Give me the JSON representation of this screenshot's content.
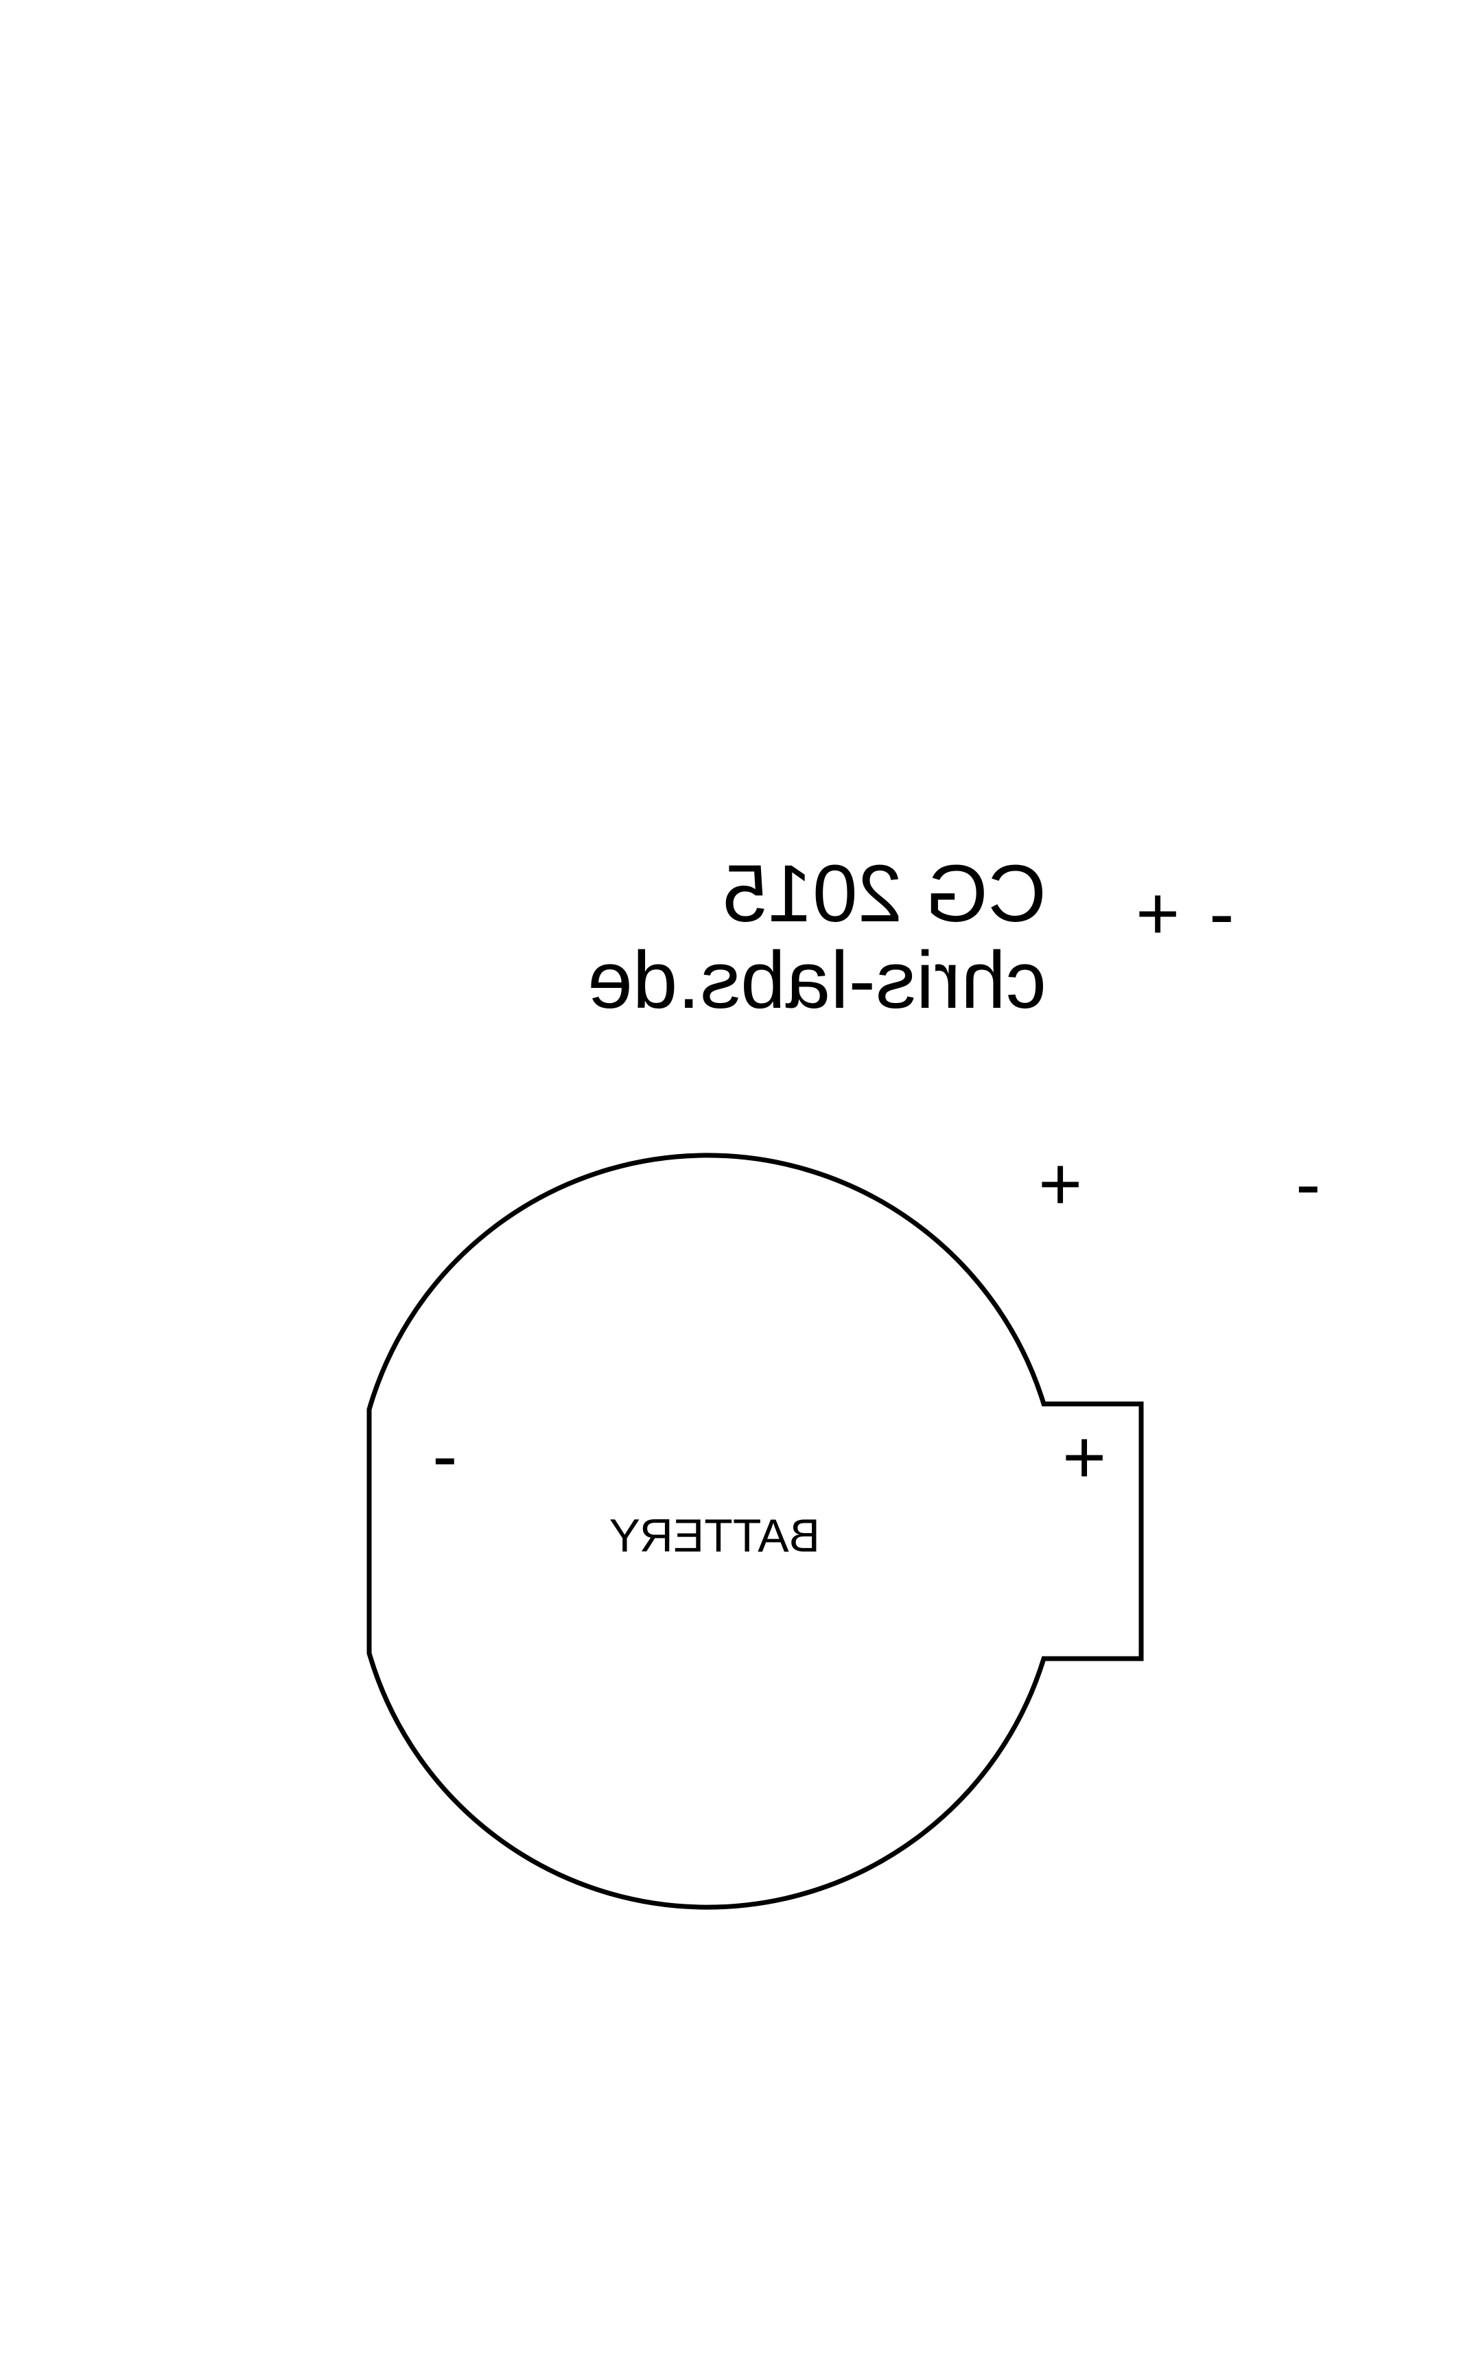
{
  "credit": {
    "line1": "CG 2015",
    "line2": "chris-labs.de"
  },
  "battery": {
    "label": "BATTERY",
    "negative_symbol": "-",
    "positive_symbol": "+"
  },
  "markers": {
    "top_plus": "+",
    "top_minus": "-",
    "mid_plus": "+",
    "mid_minus": "-"
  },
  "colors": {
    "ink": "#000000",
    "background": "#ffffff"
  }
}
